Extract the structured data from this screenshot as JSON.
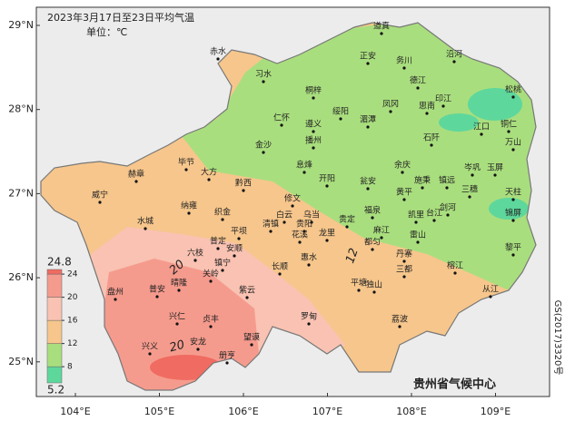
{
  "header": {
    "title": "2023年3月17日至23日平均气温",
    "unit": "单位：℃"
  },
  "axes": {
    "lat": [
      "29°N",
      "28°N",
      "27°N",
      "26°N",
      "25°N"
    ],
    "lon": [
      "104°E",
      "105°E",
      "106°E",
      "107°E",
      "108°E",
      "109°E"
    ]
  },
  "legend": {
    "min": 5.2,
    "max": 24.8,
    "ticks": [
      8,
      12,
      16,
      20,
      24
    ],
    "colors": [
      "#5ed79c",
      "#a9de7e",
      "#f6c68c",
      "#f9c2b2",
      "#f59b8d",
      "#f06b61"
    ],
    "min_label": "5.2",
    "max_label": "24.8"
  },
  "contours": [
    "20",
    "20",
    "12"
  ],
  "cities": [
    "赤水",
    "习水",
    "道真",
    "正安",
    "务川",
    "沿河",
    "德江",
    "桐梓",
    "绥阳",
    "凤冈",
    "印江",
    "松桃",
    "仁怀",
    "遵义",
    "湄潭",
    "思南",
    "江口",
    "铜仁",
    "金沙",
    "播州",
    "石阡",
    "万山",
    "毕节",
    "黔西",
    "息烽",
    "开阳",
    "余庆",
    "岑巩",
    "赫章",
    "大方",
    "瓮安",
    "施秉",
    "镇远",
    "三穗",
    "玉屏",
    "威宁",
    "纳雍",
    "织金",
    "修文",
    "黄平",
    "天柱",
    "白云",
    "乌当",
    "清镇",
    "贵阳",
    "福泉",
    "凯里",
    "剑河",
    "台江",
    "锦屏",
    "水城",
    "平坝",
    "花溪",
    "龙里",
    "贵定",
    "麻江",
    "雷山",
    "六枝",
    "普定",
    "安顺",
    "长顺",
    "惠水",
    "都匀",
    "丹寨",
    "黎平",
    "三都",
    "盘州",
    "关岭",
    "镇宁",
    "普安",
    "晴隆",
    "紫云",
    "平塘",
    "独山",
    "从江",
    "榕江",
    "兴仁",
    "贞丰",
    "罗甸",
    "荔波",
    "兴义",
    "安龙",
    "望谟",
    "册亨"
  ],
  "footer": {
    "credit": "贵州省气候中心",
    "approval": "GS(2017)3320号"
  }
}
